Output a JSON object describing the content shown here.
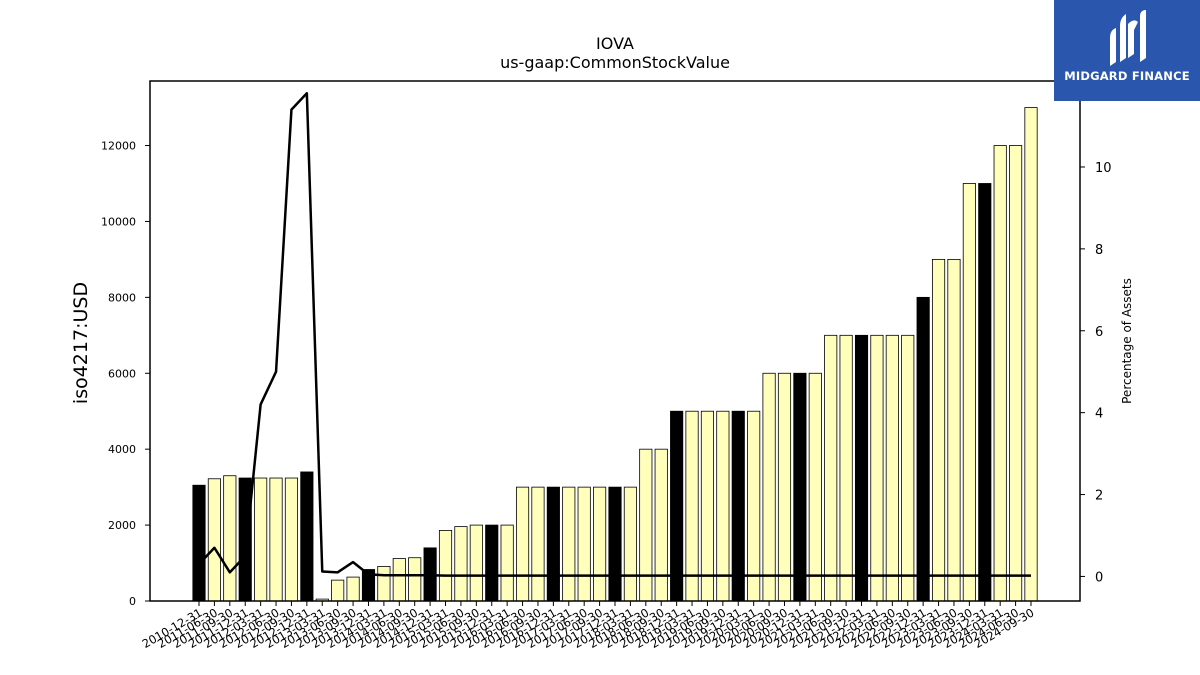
{
  "chart_data": {
    "type": "bar",
    "title": "IOVA",
    "subtitle": "us-gaap:CommonStockValue",
    "ylabel": "iso4217:USD",
    "y2label": "Percentage of Assets",
    "ylim": [
      0,
      13700
    ],
    "y2lim": [
      -0.6,
      12.1
    ],
    "yticks": [
      0,
      2000,
      4000,
      6000,
      8000,
      10000,
      12000
    ],
    "y2ticks": [
      0,
      2,
      4,
      6,
      8,
      10
    ],
    "grid": false,
    "categories": [
      "2010-12-31",
      "2011-06-30",
      "2011-09-30",
      "2011-12-31",
      "2012-03-31",
      "2012-06-30",
      "2012-09-30",
      "2012-12-31",
      "2013-03-31",
      "2013-06-30",
      "2013-09-30",
      "2013-12-31",
      "2014-03-31",
      "2014-06-30",
      "2014-09-30",
      "2014-12-31",
      "2015-03-31",
      "2015-06-30",
      "2015-09-30",
      "2015-12-31",
      "2016-03-31",
      "2016-06-30",
      "2016-09-30",
      "2016-12-31",
      "2017-03-31",
      "2017-06-30",
      "2017-09-30",
      "2017-12-31",
      "2018-03-31",
      "2018-06-30",
      "2018-09-30",
      "2018-12-31",
      "2019-03-31",
      "2019-06-30",
      "2019-09-30",
      "2019-12-31",
      "2020-03-31",
      "2020-06-30",
      "2020-09-30",
      "2020-12-31",
      "2021-03-31",
      "2021-06-30",
      "2021-09-30",
      "2021-12-31",
      "2022-03-31",
      "2022-06-30",
      "2022-09-30",
      "2022-12-31",
      "2023-03-31",
      "2023-06-30",
      "2023-09-30",
      "2023-12-31",
      "2024-03-31",
      "2024-06-30",
      "2024-09-30"
    ],
    "series": [
      {
        "type": "bar",
        "values": [
          3050,
          3220,
          3300,
          3240,
          3240,
          3240,
          3240,
          3400,
          50,
          550,
          630,
          830,
          910,
          1120,
          1140,
          1400,
          1860,
          1960,
          2000,
          2000,
          2000,
          3000,
          3000,
          3000,
          3000,
          3000,
          3000,
          3000,
          3000,
          4000,
          4000,
          5000,
          5000,
          5000,
          5000,
          5000,
          5000,
          6000,
          6000,
          6000,
          6000,
          7000,
          7000,
          7000,
          7000,
          7000,
          7000,
          8000,
          9000,
          9000,
          11000,
          11000,
          12000,
          12000,
          13000
        ],
        "annual_fy_end": [
          true,
          false,
          false,
          true,
          false,
          false,
          false,
          true,
          false,
          false,
          false,
          true,
          false,
          false,
          false,
          true,
          false,
          false,
          false,
          true,
          false,
          false,
          false,
          true,
          false,
          false,
          false,
          true,
          false,
          false,
          false,
          true,
          false,
          false,
          false,
          true,
          false,
          false,
          false,
          true,
          false,
          false,
          false,
          true,
          false,
          false,
          false,
          true,
          false,
          false,
          false,
          true,
          false,
          false,
          false
        ],
        "colors": {
          "annual": "#000000",
          "quarter": "#ffffbb",
          "edge": "#000000"
        }
      },
      {
        "type": "line",
        "axis": "right",
        "color": "#000000",
        "values": [
          0.3,
          0.7,
          0.1,
          0.5,
          4.2,
          5.0,
          11.4,
          11.8,
          0.12,
          0.1,
          0.35,
          0.05,
          0.03,
          0.03,
          0.03,
          0.03,
          0.02,
          0.02,
          0.02,
          0.02,
          0.02,
          0.02,
          0.02,
          0.02,
          0.02,
          0.02,
          0.02,
          0.02,
          0.02,
          0.02,
          0.02,
          0.02,
          0.02,
          0.02,
          0.02,
          0.02,
          0.02,
          0.02,
          0.02,
          0.02,
          0.02,
          0.02,
          0.02,
          0.02,
          0.02,
          0.02,
          0.02,
          0.02,
          0.02,
          0.02,
          0.02,
          0.02,
          0.02,
          0.02,
          0.02
        ]
      }
    ]
  },
  "branding": {
    "name": "MIDGARD FINANCE",
    "background": "#2a56ad",
    "text_color": "#ffffff",
    "icon": "midgard-logo-icon"
  }
}
